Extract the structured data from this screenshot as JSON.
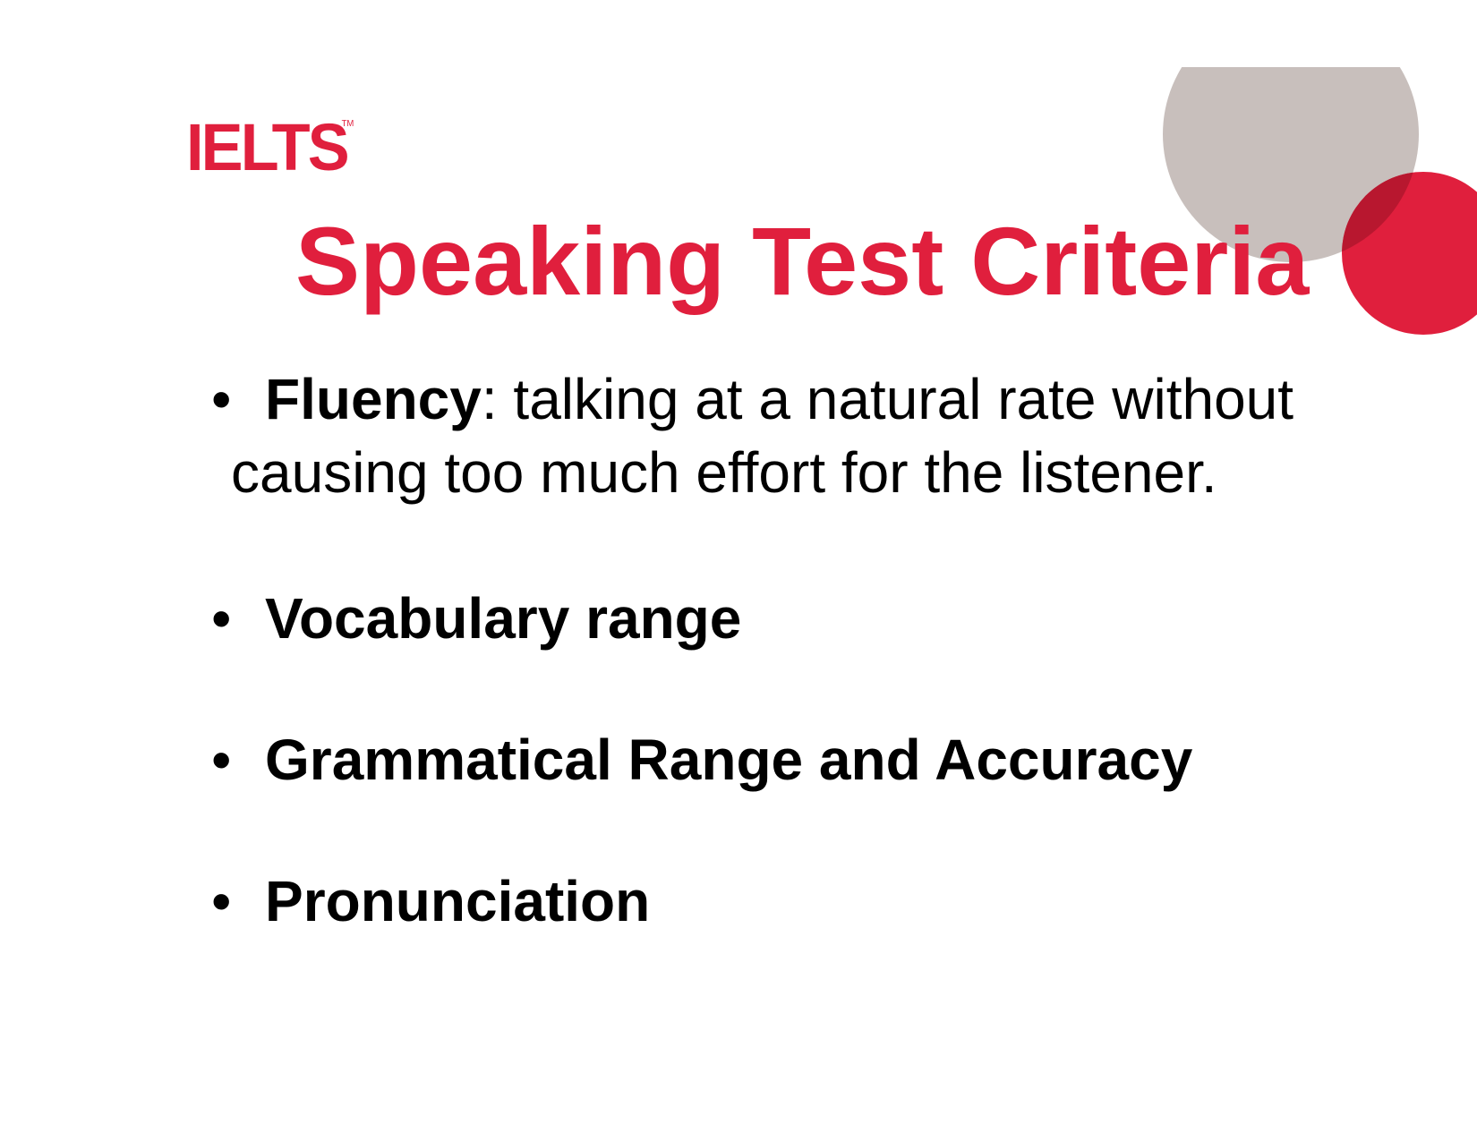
{
  "logo": {
    "text": "IELTS",
    "trademark": "TM"
  },
  "title": "Speaking Test Criteria",
  "bullets": [
    {
      "bold": "Fluency",
      "rest_line1": ": talking at a natural rate without",
      "rest_line2": "causing too much effort for the listener."
    },
    {
      "bold": "Vocabulary range"
    },
    {
      "bold": "Grammatical Range and Accuracy"
    },
    {
      "bold": "Pronunciation"
    }
  ],
  "bullet_symbol": "•",
  "colors": {
    "brand_red": "#e01f3d",
    "circle_gray": "#c8bfbc",
    "overlap_red": "#b8172f"
  }
}
